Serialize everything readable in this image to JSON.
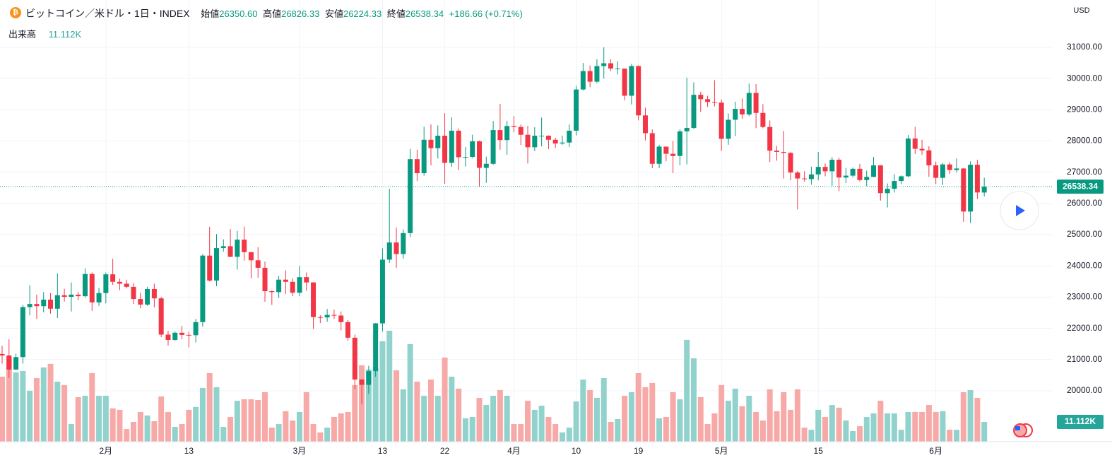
{
  "chart_data": {
    "type": "candlestick",
    "header": {
      "title": "ビットコイン／米ドル・1日・INDEX",
      "ohlc_names": [
        "始値",
        "高値",
        "安値",
        "終値"
      ],
      "ohlc_labels": [
        "26350.60",
        "26826.33",
        "26224.33",
        "26538.34"
      ],
      "change": "+186.66 (+0.71%)",
      "volume_name": "出来高",
      "volume_label": "11.112K"
    },
    "currency": "USD",
    "up_color": "#089981",
    "down_color": "#f23645",
    "volume_up_color": "#92d2cc",
    "volume_down_color": "#f7a9a7",
    "grid": true,
    "ylim": [
      18370,
      32516
    ],
    "yticks": [
      {
        "value": 20000,
        "label": "20000.00"
      },
      {
        "value": 21000,
        "label": "21000.00"
      },
      {
        "value": 22000,
        "label": "22000.00"
      },
      {
        "value": 23000,
        "label": "23000.00"
      },
      {
        "value": 24000,
        "label": "24000.00"
      },
      {
        "value": 25000,
        "label": "25000.00"
      },
      {
        "value": 26000,
        "label": "26000.00"
      },
      {
        "value": 27000,
        "label": "27000.00"
      },
      {
        "value": 28000,
        "label": "28000.00"
      },
      {
        "value": 29000,
        "label": "29000.00"
      },
      {
        "value": 30000,
        "label": "30000.00"
      },
      {
        "value": 31000,
        "label": "31000.00"
      }
    ],
    "categories": [
      null,
      null,
      null,
      null,
      null,
      null,
      null,
      null,
      null,
      null,
      null,
      null,
      null,
      null,
      null,
      "2月",
      null,
      null,
      null,
      null,
      null,
      null,
      null,
      null,
      null,
      null,
      null,
      "13",
      null,
      null,
      null,
      null,
      null,
      null,
      null,
      null,
      null,
      null,
      null,
      null,
      null,
      null,
      null,
      "3月",
      null,
      null,
      null,
      null,
      null,
      null,
      null,
      null,
      null,
      null,
      null,
      "13",
      null,
      null,
      null,
      null,
      null,
      null,
      null,
      null,
      "22",
      null,
      null,
      null,
      null,
      null,
      null,
      null,
      null,
      null,
      "4月",
      null,
      null,
      null,
      null,
      null,
      null,
      null,
      null,
      "10",
      null,
      null,
      null,
      null,
      null,
      null,
      null,
      null,
      "19",
      null,
      null,
      null,
      null,
      null,
      null,
      null,
      null,
      null,
      null,
      null,
      "5月",
      null,
      null,
      null,
      null,
      null,
      null,
      null,
      null,
      null,
      null,
      null,
      null,
      null,
      "15",
      null,
      null,
      null,
      null,
      null,
      null,
      null,
      null,
      null,
      null,
      null,
      null,
      null,
      null,
      null,
      null,
      "6月",
      null,
      null,
      null,
      null,
      null,
      null,
      null
    ],
    "open": [
      21180,
      21130,
      20680,
      21080,
      22680,
      22780,
      22710,
      22920,
      22630,
      23060,
      23010,
      23080,
      23030,
      23740,
      22830,
      23130,
      23730,
      23490,
      23430,
      23330,
      22940,
      22760,
      23260,
      22960,
      21800,
      21630,
      21860,
      21790,
      21780,
      22200,
      24330,
      23530,
      24570,
      24630,
      24290,
      24840,
      24440,
      24180,
      23940,
      23190,
      23160,
      23560,
      23490,
      23140,
      23640,
      23470,
      22360,
      22350,
      22430,
      22410,
      22200,
      21700,
      20360,
      20190,
      20630,
      22160,
      24200,
      24750,
      24380,
      25050,
      27420,
      26970,
      28040,
      27770,
      28170,
      27300,
      28330,
      27480,
      27490,
      27990,
      27140,
      27270,
      28350,
      28030,
      28480,
      28450,
      28200,
      27800,
      28170,
      28170,
      28040,
      27920,
      27950,
      28330,
      29650,
      30240,
      29900,
      30400,
      30490,
      30320,
      30320,
      29450,
      30400,
      28820,
      28250,
      27270,
      27820,
      27590,
      27520,
      28310,
      28420,
      29480,
      29340,
      29250,
      29230,
      28070,
      28680,
      29030,
      28850,
      29540,
      28900,
      28450,
      27690,
      27650,
      27620,
      26990,
      26800,
      26780,
      26930,
      27170,
      27030,
      27400,
      26830,
      26890,
      27110,
      26750,
      26850,
      27220,
      26330,
      26470,
      26720,
      26870,
      28080,
      27750,
      27700,
      27220,
      26820,
      27250,
      27070,
      27120,
      25740,
      27240,
      26350.6
    ],
    "high": [
      21440,
      21650,
      21190,
      22750,
      23380,
      23080,
      23160,
      23130,
      23760,
      23270,
      23470,
      23160,
      23920,
      23790,
      23300,
      23790,
      24230,
      23590,
      23560,
      23450,
      23140,
      23330,
      23430,
      23010,
      21920,
      21900,
      22080,
      21890,
      22300,
      24380,
      25250,
      25020,
      24850,
      25180,
      25120,
      25260,
      24450,
      24600,
      24140,
      23210,
      23680,
      23860,
      23600,
      24000,
      23790,
      23480,
      22420,
      22620,
      22600,
      22540,
      22270,
      21800,
      20370,
      20800,
      22170,
      24560,
      26470,
      25230,
      25170,
      27750,
      27720,
      28460,
      28530,
      28500,
      28890,
      28760,
      28400,
      27810,
      28200,
      28010,
      27500,
      28640,
      29190,
      28650,
      28800,
      28530,
      28490,
      28440,
      28750,
      28180,
      28100,
      28170,
      28530,
      29770,
      30500,
      30420,
      30620,
      31000,
      30620,
      30550,
      30320,
      30470,
      30420,
      29070,
      28370,
      27880,
      27820,
      28000,
      28380,
      30030,
      29880,
      29580,
      29450,
      29950,
      29330,
      28880,
      29260,
      29360,
      29840,
      29820,
      29180,
      28660,
      27840,
      28320,
      27640,
      27040,
      27030,
      27180,
      27650,
      27280,
      27480,
      27470,
      27140,
      27150,
      27270,
      27050,
      27490,
      27230,
      26640,
      26940,
      26900,
      28190,
      28450,
      28040,
      27830,
      27340,
      27300,
      27330,
      27440,
      27130,
      27350,
      27400,
      26826.33
    ],
    "low": [
      20870,
      20410,
      20660,
      20870,
      22420,
      22300,
      22510,
      22470,
      22330,
      22860,
      22540,
      22900,
      22990,
      22560,
      22720,
      22800,
      23390,
      23220,
      23280,
      22780,
      22640,
      22720,
      22670,
      21720,
      21450,
      21600,
      21650,
      21390,
      21550,
      22050,
      23500,
      23350,
      24460,
      24280,
      23880,
      24170,
      23600,
      23620,
      22850,
      22750,
      22970,
      23100,
      23030,
      23030,
      23200,
      21980,
      22170,
      22210,
      22300,
      21930,
      21600,
      20050,
      19570,
      19900,
      20450,
      21900,
      24100,
      23940,
      24230,
      24920,
      26720,
      26890,
      27220,
      27440,
      26630,
      27170,
      27070,
      27180,
      27460,
      26550,
      26660,
      27240,
      27720,
      27560,
      28280,
      27870,
      27280,
      27680,
      27830,
      27740,
      27780,
      27880,
      27810,
      28180,
      29620,
      29720,
      29850,
      30000,
      30240,
      30130,
      29300,
      29170,
      28660,
      28020,
      27130,
      27130,
      27350,
      26970,
      27220,
      27250,
      28380,
      28930,
      29090,
      29110,
      27680,
      27880,
      28160,
      28710,
      28800,
      28410,
      28410,
      27330,
      27370,
      26800,
      26740,
      25810,
      26700,
      26600,
      26740,
      26870,
      26560,
      26390,
      26650,
      26830,
      26700,
      26550,
      26840,
      26090,
      25870,
      26350,
      26620,
      26840,
      27580,
      27560,
      26850,
      26620,
      26590,
      26950,
      26990,
      25410,
      25370,
      26140,
      26224.33
    ],
    "close": [
      21130,
      20680,
      21080,
      22680,
      22780,
      22710,
      22920,
      22630,
      23060,
      23010,
      23080,
      23030,
      23740,
      22830,
      23130,
      23730,
      23490,
      23430,
      23330,
      22940,
      22760,
      23260,
      22960,
      21800,
      21630,
      21860,
      21790,
      21780,
      22200,
      24330,
      23530,
      24570,
      24630,
      24290,
      24840,
      24440,
      24180,
      23940,
      23190,
      23160,
      23560,
      23490,
      23140,
      23640,
      23470,
      22360,
      22350,
      22430,
      22410,
      22200,
      21700,
      20360,
      20190,
      20630,
      22160,
      24200,
      24750,
      24380,
      25050,
      27420,
      26970,
      28040,
      27770,
      28170,
      27300,
      28330,
      27480,
      27490,
      27990,
      27140,
      27270,
      28350,
      28030,
      28480,
      28450,
      28200,
      27800,
      28170,
      28170,
      28040,
      27920,
      27950,
      28330,
      29650,
      30240,
      29900,
      30400,
      30490,
      30320,
      30320,
      29450,
      30400,
      28820,
      28250,
      27270,
      27820,
      27590,
      27520,
      28310,
      28420,
      29480,
      29340,
      29250,
      29230,
      28070,
      28680,
      29030,
      28850,
      29540,
      28900,
      28450,
      27690,
      27650,
      27620,
      26990,
      26800,
      26780,
      26930,
      27170,
      27030,
      27400,
      26830,
      26890,
      27110,
      26750,
      26850,
      27220,
      26330,
      26470,
      26720,
      26870,
      28080,
      27750,
      27700,
      27220,
      26820,
      27250,
      27070,
      27120,
      25740,
      27240,
      26351.68,
      26538.34
    ],
    "volume": [
      36.5,
      47.2,
      38.9,
      39.7,
      28.6,
      35.7,
      41.7,
      43.7,
      33.7,
      31.8,
      9.9,
      25.0,
      25.8,
      38.5,
      25.8,
      25.8,
      18.7,
      17.9,
      7.1,
      11.1,
      16.7,
      14.7,
      11.5,
      25.4,
      16.7,
      8.3,
      9.9,
      17.9,
      19.5,
      30.2,
      38.5,
      30.6,
      8.3,
      13.9,
      23.0,
      23.8,
      23.8,
      23.4,
      27.8,
      7.9,
      9.9,
      17.1,
      11.9,
      16.7,
      27.8,
      9.9,
      5.2,
      7.9,
      13.9,
      15.9,
      16.7,
      31.8,
      42.9,
      40.5,
      41.7,
      56.4,
      62.3,
      40.1,
      29.4,
      54.8,
      33.7,
      25.8,
      34.9,
      25.8,
      47.2,
      36.5,
      29.8,
      13.1,
      13.9,
      24.6,
      20.6,
      25.8,
      29.0,
      25.8,
      9.9,
      9.9,
      23.0,
      17.9,
      20.2,
      13.9,
      9.9,
      5.2,
      7.9,
      22.6,
      34.9,
      29.0,
      24.6,
      35.7,
      11.1,
      12.7,
      25.8,
      27.8,
      38.5,
      30.6,
      33.0,
      13.1,
      13.9,
      27.8,
      23.8,
      57.2,
      46.8,
      25.0,
      9.9,
      15.9,
      31.8,
      23.0,
      29.8,
      19.9,
      25.8,
      16.7,
      11.9,
      29.4,
      17.1,
      27.8,
      17.9,
      29.4,
      7.9,
      6.7,
      17.9,
      13.9,
      20.6,
      19.1,
      11.9,
      6.0,
      8.7,
      13.9,
      15.9,
      23.0,
      15.9,
      15.9,
      6.7,
      16.7,
      16.7,
      16.7,
      20.6,
      16.7,
      17.1,
      6.7,
      6.7,
      27.8,
      29.0,
      24.6,
      11.112
    ]
  }
}
